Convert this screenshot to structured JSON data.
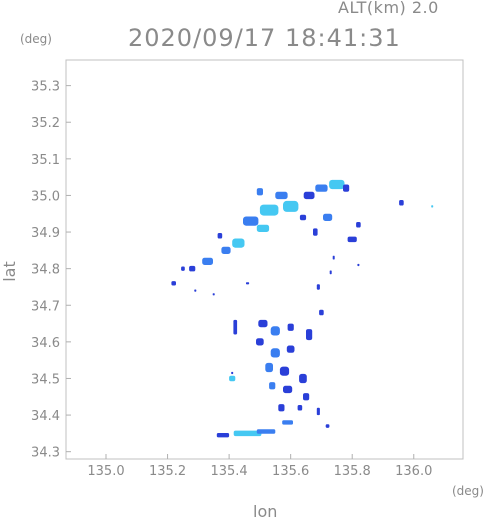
{
  "header": {
    "alt_label": "ALT(km) 2.0",
    "timestamp": "2020/09/17 18:41:31"
  },
  "chart_data": {
    "type": "heatmap",
    "title": "2020/09/17 18:41:31",
    "xlabel": "lon",
    "ylabel": "lat",
    "x_unit": "(deg)",
    "y_unit": "(deg)",
    "xlim": [
      134.87,
      136.16
    ],
    "ylim": [
      34.28,
      35.37
    ],
    "x_ticks": [
      "135.0",
      "135.2",
      "135.4",
      "135.6",
      "135.8",
      "136.0"
    ],
    "y_ticks": [
      "34.3",
      "34.4",
      "34.5",
      "34.6",
      "34.7",
      "34.8",
      "34.9",
      "35.0",
      "35.1",
      "35.2",
      "35.3"
    ],
    "grid": false,
    "colors": {
      "low": "#2a3fd8",
      "mid": "#3a7ef0",
      "high": "#45c8f2"
    },
    "echo_cells": [
      {
        "lon": 135.75,
        "lat": 35.03,
        "w": 0.05,
        "h": 0.025,
        "level": "high"
      },
      {
        "lon": 135.7,
        "lat": 35.02,
        "w": 0.04,
        "h": 0.02,
        "level": "mid"
      },
      {
        "lon": 135.66,
        "lat": 35.0,
        "w": 0.035,
        "h": 0.02,
        "level": "low"
      },
      {
        "lon": 135.6,
        "lat": 34.97,
        "w": 0.05,
        "h": 0.03,
        "level": "high"
      },
      {
        "lon": 135.53,
        "lat": 34.96,
        "w": 0.06,
        "h": 0.03,
        "level": "high"
      },
      {
        "lon": 135.57,
        "lat": 35.0,
        "w": 0.04,
        "h": 0.02,
        "level": "mid"
      },
      {
        "lon": 135.5,
        "lat": 35.01,
        "w": 0.02,
        "h": 0.02,
        "level": "mid"
      },
      {
        "lon": 135.47,
        "lat": 34.93,
        "w": 0.05,
        "h": 0.025,
        "level": "mid"
      },
      {
        "lon": 135.51,
        "lat": 34.91,
        "w": 0.04,
        "h": 0.02,
        "level": "high"
      },
      {
        "lon": 135.43,
        "lat": 34.87,
        "w": 0.04,
        "h": 0.025,
        "level": "high"
      },
      {
        "lon": 135.39,
        "lat": 34.85,
        "w": 0.03,
        "h": 0.02,
        "level": "mid"
      },
      {
        "lon": 135.33,
        "lat": 34.82,
        "w": 0.035,
        "h": 0.02,
        "level": "mid"
      },
      {
        "lon": 135.28,
        "lat": 34.8,
        "w": 0.02,
        "h": 0.015,
        "level": "low"
      },
      {
        "lon": 135.37,
        "lat": 34.89,
        "w": 0.015,
        "h": 0.015,
        "level": "low"
      },
      {
        "lon": 135.22,
        "lat": 34.76,
        "w": 0.015,
        "h": 0.012,
        "level": "low"
      },
      {
        "lon": 135.25,
        "lat": 34.8,
        "w": 0.012,
        "h": 0.012,
        "level": "low"
      },
      {
        "lon": 135.64,
        "lat": 34.94,
        "w": 0.02,
        "h": 0.015,
        "level": "low"
      },
      {
        "lon": 135.68,
        "lat": 34.9,
        "w": 0.015,
        "h": 0.02,
        "level": "low"
      },
      {
        "lon": 135.72,
        "lat": 34.94,
        "w": 0.03,
        "h": 0.02,
        "level": "mid"
      },
      {
        "lon": 135.8,
        "lat": 34.88,
        "w": 0.03,
        "h": 0.015,
        "level": "low"
      },
      {
        "lon": 135.82,
        "lat": 34.92,
        "w": 0.015,
        "h": 0.015,
        "level": "low"
      },
      {
        "lon": 135.78,
        "lat": 35.02,
        "w": 0.02,
        "h": 0.02,
        "level": "low"
      },
      {
        "lon": 135.96,
        "lat": 34.98,
        "w": 0.015,
        "h": 0.015,
        "level": "low"
      },
      {
        "lon": 136.06,
        "lat": 34.97,
        "w": 0.006,
        "h": 0.006,
        "level": "high"
      },
      {
        "lon": 135.74,
        "lat": 34.83,
        "w": 0.006,
        "h": 0.01,
        "level": "low"
      },
      {
        "lon": 135.73,
        "lat": 34.79,
        "w": 0.006,
        "h": 0.01,
        "level": "low"
      },
      {
        "lon": 135.82,
        "lat": 34.81,
        "w": 0.006,
        "h": 0.006,
        "level": "low"
      },
      {
        "lon": 135.69,
        "lat": 34.75,
        "w": 0.01,
        "h": 0.015,
        "level": "low"
      },
      {
        "lon": 135.35,
        "lat": 34.73,
        "w": 0.006,
        "h": 0.006,
        "level": "low"
      },
      {
        "lon": 135.46,
        "lat": 34.76,
        "w": 0.01,
        "h": 0.006,
        "level": "low"
      },
      {
        "lon": 135.42,
        "lat": 34.64,
        "w": 0.012,
        "h": 0.04,
        "level": "low"
      },
      {
        "lon": 135.51,
        "lat": 34.65,
        "w": 0.03,
        "h": 0.02,
        "level": "low"
      },
      {
        "lon": 135.55,
        "lat": 34.63,
        "w": 0.03,
        "h": 0.025,
        "level": "mid"
      },
      {
        "lon": 135.6,
        "lat": 34.64,
        "w": 0.02,
        "h": 0.02,
        "level": "low"
      },
      {
        "lon": 135.66,
        "lat": 34.62,
        "w": 0.02,
        "h": 0.03,
        "level": "low"
      },
      {
        "lon": 135.7,
        "lat": 34.68,
        "w": 0.015,
        "h": 0.015,
        "level": "low"
      },
      {
        "lon": 135.5,
        "lat": 34.6,
        "w": 0.025,
        "h": 0.02,
        "level": "low"
      },
      {
        "lon": 135.55,
        "lat": 34.57,
        "w": 0.03,
        "h": 0.025,
        "level": "mid"
      },
      {
        "lon": 135.6,
        "lat": 34.58,
        "w": 0.025,
        "h": 0.02,
        "level": "low"
      },
      {
        "lon": 135.53,
        "lat": 34.53,
        "w": 0.025,
        "h": 0.025,
        "level": "mid"
      },
      {
        "lon": 135.58,
        "lat": 34.52,
        "w": 0.03,
        "h": 0.025,
        "level": "low"
      },
      {
        "lon": 135.64,
        "lat": 34.5,
        "w": 0.025,
        "h": 0.025,
        "level": "low"
      },
      {
        "lon": 135.54,
        "lat": 34.48,
        "w": 0.02,
        "h": 0.02,
        "level": "mid"
      },
      {
        "lon": 135.59,
        "lat": 34.47,
        "w": 0.03,
        "h": 0.02,
        "level": "low"
      },
      {
        "lon": 135.65,
        "lat": 34.45,
        "w": 0.02,
        "h": 0.02,
        "level": "low"
      },
      {
        "lon": 135.57,
        "lat": 34.42,
        "w": 0.02,
        "h": 0.02,
        "level": "low"
      },
      {
        "lon": 135.63,
        "lat": 34.42,
        "w": 0.015,
        "h": 0.015,
        "level": "low"
      },
      {
        "lon": 135.69,
        "lat": 34.41,
        "w": 0.01,
        "h": 0.02,
        "level": "low"
      },
      {
        "lon": 135.59,
        "lat": 34.38,
        "w": 0.035,
        "h": 0.012,
        "level": "mid"
      },
      {
        "lon": 135.41,
        "lat": 34.5,
        "w": 0.02,
        "h": 0.015,
        "level": "high"
      },
      {
        "lon": 135.41,
        "lat": 34.515,
        "w": 0.006,
        "h": 0.006,
        "level": "low"
      },
      {
        "lon": 135.46,
        "lat": 34.35,
        "w": 0.09,
        "h": 0.015,
        "level": "high"
      },
      {
        "lon": 135.38,
        "lat": 34.345,
        "w": 0.04,
        "h": 0.012,
        "level": "low"
      },
      {
        "lon": 135.52,
        "lat": 34.355,
        "w": 0.06,
        "h": 0.012,
        "level": "mid"
      },
      {
        "lon": 135.72,
        "lat": 34.37,
        "w": 0.012,
        "h": 0.01,
        "level": "low"
      },
      {
        "lon": 135.29,
        "lat": 34.74,
        "w": 0.006,
        "h": 0.006,
        "level": "low"
      }
    ]
  }
}
